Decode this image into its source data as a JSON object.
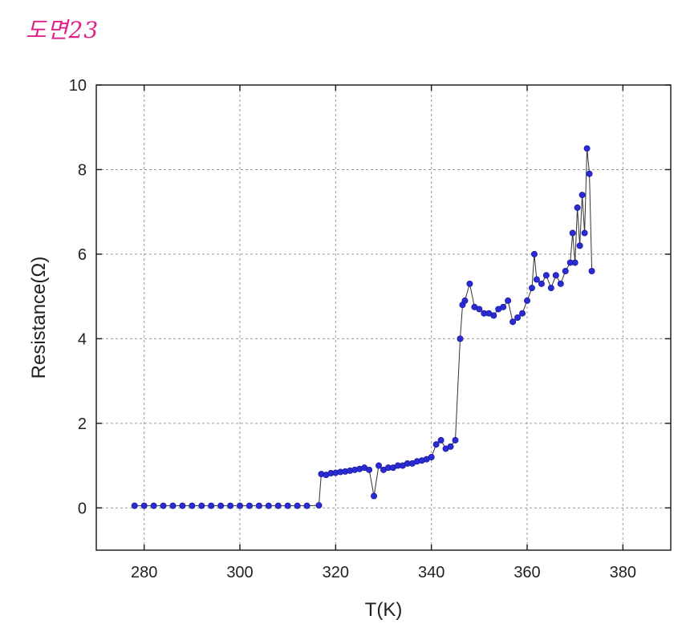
{
  "figure_label": "도면23",
  "chart_data": {
    "type": "scatter",
    "xlabel": "T(K)",
    "ylabel": "Resistance(Ω)",
    "xlim": [
      270,
      390
    ],
    "ylim": [
      -1,
      10
    ],
    "x_ticks": [
      280,
      300,
      320,
      340,
      360,
      380
    ],
    "y_ticks": [
      0,
      2,
      4,
      6,
      8,
      10
    ],
    "grid": true,
    "marker_color": "#2b2bd6",
    "line_color": "#333333",
    "series": [
      {
        "x": [
          278,
          280,
          282,
          284,
          286,
          288,
          290,
          292,
          294,
          296,
          298,
          300,
          302,
          304,
          306,
          308,
          310,
          312,
          314,
          316.5,
          317,
          318,
          319,
          320,
          321,
          322,
          323,
          324,
          325,
          326,
          327,
          328,
          329,
          330,
          331,
          332,
          333,
          334,
          335,
          336,
          337,
          338,
          339,
          340,
          341,
          342,
          343,
          344,
          345,
          346,
          346.5,
          347,
          348,
          349,
          350,
          351,
          352,
          353,
          354,
          355,
          356,
          357,
          358,
          359,
          360,
          361,
          361.5,
          362,
          363,
          364,
          365,
          366,
          367,
          368,
          369,
          369.5,
          370,
          370.5,
          371,
          371.5,
          372,
          372.5,
          373,
          373.5
        ],
        "y": [
          0.05,
          0.05,
          0.05,
          0.05,
          0.05,
          0.05,
          0.05,
          0.05,
          0.05,
          0.05,
          0.05,
          0.05,
          0.05,
          0.05,
          0.05,
          0.05,
          0.05,
          0.05,
          0.05,
          0.06,
          0.8,
          0.78,
          0.82,
          0.83,
          0.85,
          0.86,
          0.88,
          0.9,
          0.92,
          0.95,
          0.9,
          0.28,
          1.0,
          0.9,
          0.95,
          0.95,
          1.0,
          1.0,
          1.05,
          1.05,
          1.1,
          1.12,
          1.15,
          1.2,
          1.5,
          1.6,
          1.4,
          1.45,
          1.6,
          4.0,
          4.8,
          4.9,
          5.3,
          4.75,
          4.7,
          4.6,
          4.6,
          4.55,
          4.7,
          4.75,
          4.9,
          4.4,
          4.5,
          4.6,
          4.9,
          5.2,
          6.0,
          5.4,
          5.3,
          5.5,
          5.2,
          5.5,
          5.3,
          5.6,
          5.8,
          6.5,
          5.8,
          7.1,
          6.2,
          7.4,
          6.5,
          8.5,
          7.9,
          5.6
        ]
      }
    ]
  }
}
